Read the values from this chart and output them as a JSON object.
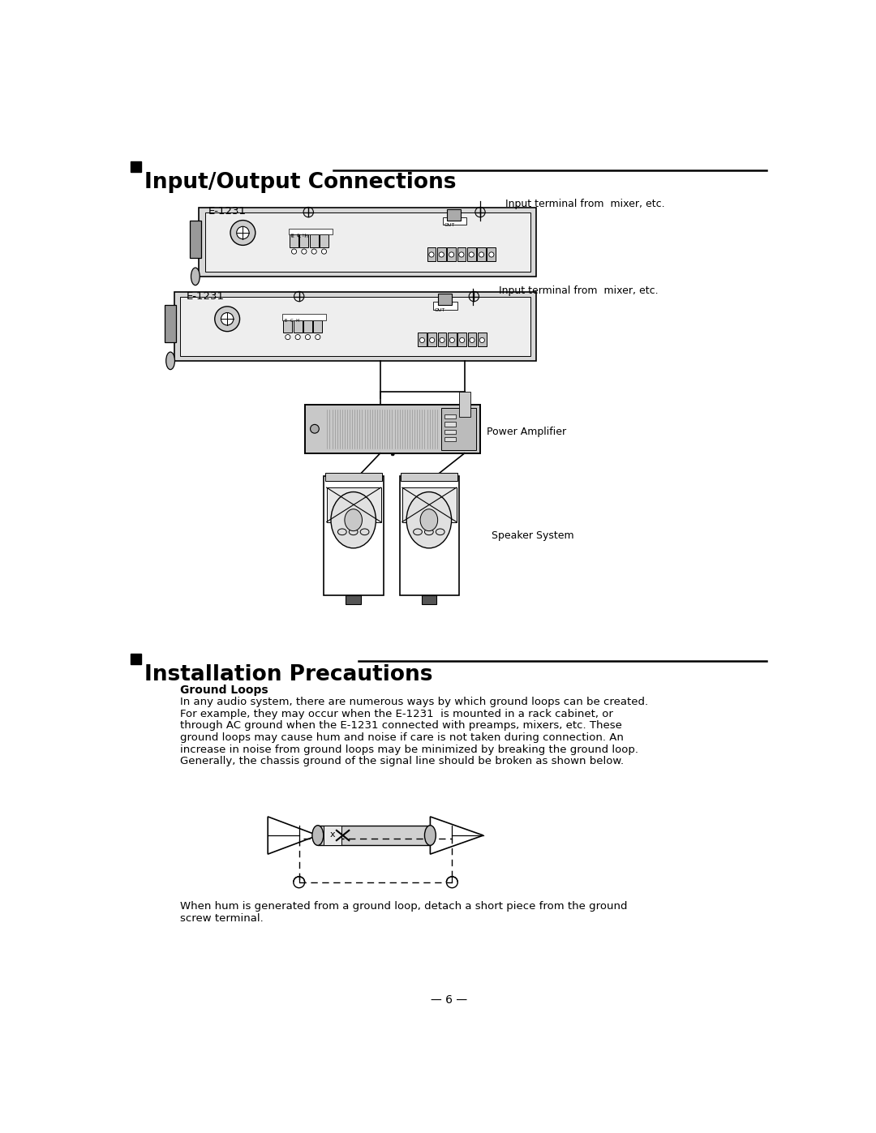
{
  "title1": "Input/Output Connections",
  "title2": "Installation Precautions",
  "section2_subtitle": "Ground Loops",
  "section2_body_lines": [
    "In any audio system, there are numerous ways by which ground loops can be created.",
    "For example, they may occur when the E-1231  is mounted in a rack cabinet, or",
    "through AC ground when the E-1231 connected with preamps, mixers, etc. These",
    "ground loops may cause hum and noise if care is not taken during connection. An",
    "increase in noise from ground loops may be minimized by breaking the ground loop.",
    "Generally, the chassis ground of the signal line should be broken as shown below."
  ],
  "bottom_text_lines": [
    "When hum is generated from a ground loop, detach a short piece from the ground",
    "screw terminal."
  ],
  "page_number": "— 6 —",
  "label_e1231_1": "E-1231",
  "label_e1231_2": "E-1231",
  "label_input1": "Input terminal from  mixer, etc.",
  "label_input2": "Input terminal from  mixer, etc.",
  "label_power_amp": "Power Amplifier",
  "label_speaker": "Speaker System",
  "bg_color": "#ffffff",
  "text_color": "#000000",
  "line_color": "#444444"
}
